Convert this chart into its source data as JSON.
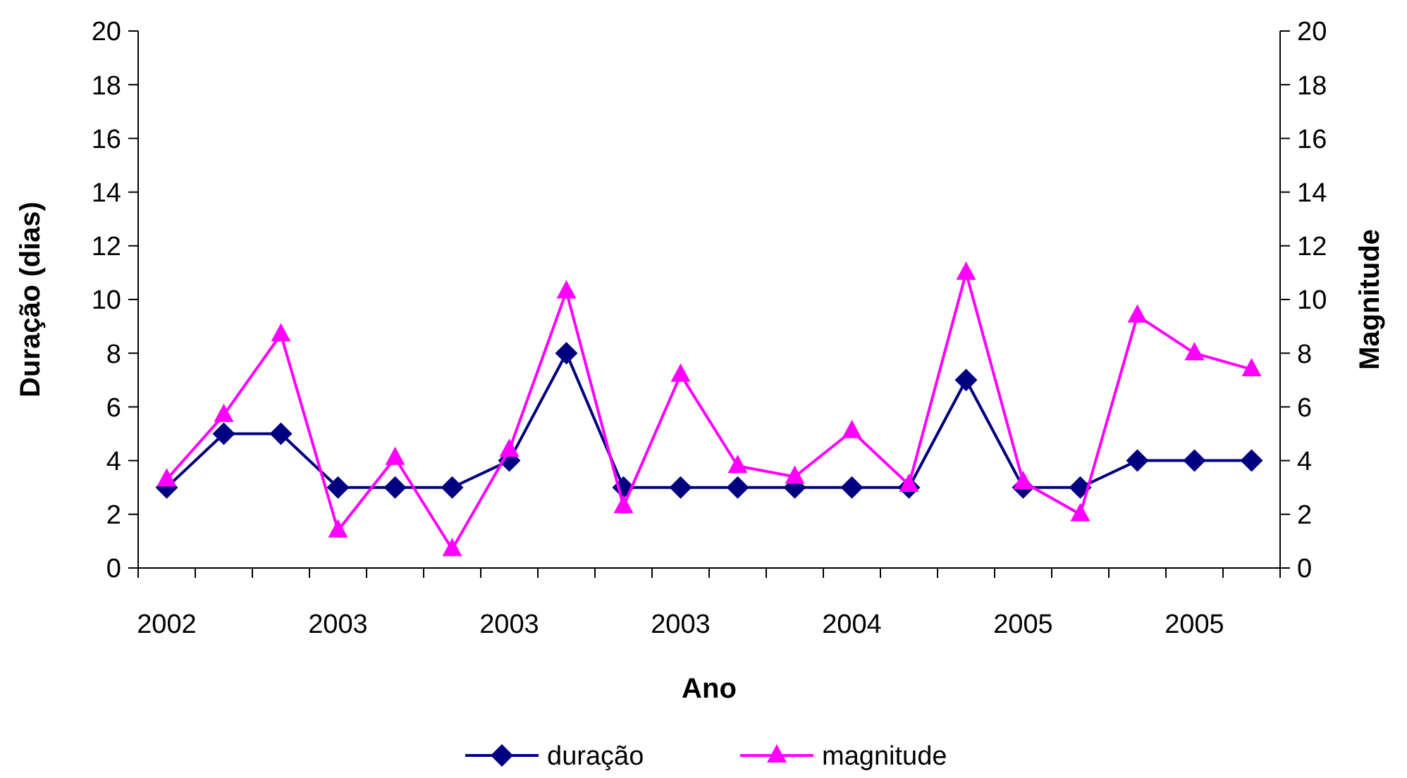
{
  "chart_data": {
    "type": "line",
    "xlabel": "Ano",
    "ylabel": "Duração (dias)",
    "y2label": "Magnitude",
    "categories": [
      "2002",
      null,
      null,
      "2003",
      null,
      null,
      "2003",
      null,
      null,
      "2003",
      null,
      null,
      "2004",
      null,
      null,
      "2005",
      null,
      null,
      "2005",
      null
    ],
    "series": [
      {
        "name": "duração",
        "color": "#000080",
        "marker": "diamond",
        "values": [
          3,
          5,
          5,
          3,
          3,
          3,
          4,
          8,
          3,
          3,
          3,
          3,
          3,
          3,
          7,
          3,
          3,
          4,
          4,
          4
        ]
      },
      {
        "name": "magnitude",
        "color": "#ff00ff",
        "marker": "triangle",
        "axis": "y2",
        "values": [
          3.3,
          5.7,
          8.7,
          1.4,
          4.1,
          0.7,
          4.4,
          10.3,
          2.3,
          7.2,
          3.8,
          3.4,
          5.1,
          3.1,
          11,
          3.2,
          2,
          9.4,
          8,
          7.4
        ]
      }
    ],
    "ylim": [
      0,
      20
    ],
    "yticks": [
      0,
      2,
      4,
      6,
      8,
      10,
      12,
      14,
      16,
      18,
      20
    ],
    "y2lim": [
      0,
      20
    ],
    "y2ticks": [
      0,
      2,
      4,
      6,
      8,
      10,
      12,
      14,
      16,
      18,
      20
    ],
    "grid": false,
    "legend": "bottom",
    "line_style": "solid"
  }
}
